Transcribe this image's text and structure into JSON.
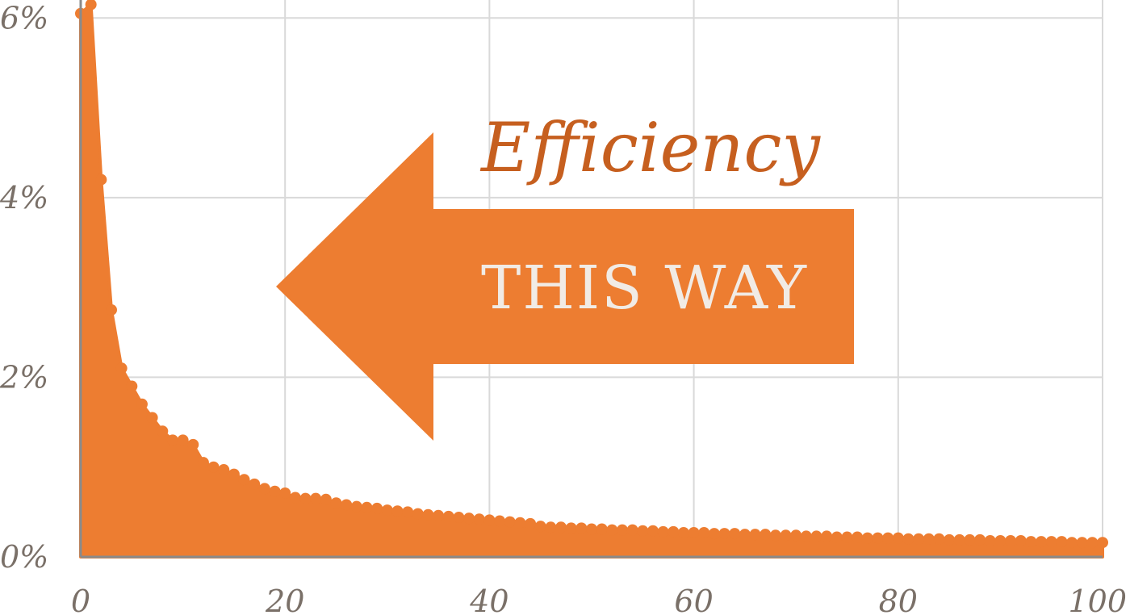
{
  "chart_data": {
    "type": "area",
    "xlim": [
      0,
      100
    ],
    "ylim": [
      0,
      6.2
    ],
    "x_ticks": [
      0,
      20,
      40,
      60,
      80,
      100
    ],
    "x_tick_labels": [
      "0",
      "20",
      "40",
      "60",
      "80",
      "100"
    ],
    "y_ticks": [
      0,
      2,
      4,
      6
    ],
    "y_tick_labels": [
      "0%",
      "2%",
      "4%",
      "6%"
    ],
    "grid": true,
    "color": "#ed7d31",
    "annotations": {
      "efficiency": "Efficiency",
      "this_way": "THIS WAY"
    },
    "x": [
      0,
      1,
      2,
      3,
      4,
      5,
      6,
      7,
      8,
      9,
      10,
      11,
      12,
      13,
      14,
      15,
      16,
      17,
      18,
      19,
      20,
      21,
      22,
      23,
      24,
      25,
      26,
      27,
      28,
      29,
      30,
      31,
      32,
      33,
      34,
      35,
      36,
      37,
      38,
      39,
      40,
      41,
      42,
      43,
      44,
      45,
      46,
      47,
      48,
      49,
      50,
      51,
      52,
      53,
      54,
      55,
      56,
      57,
      58,
      59,
      60,
      61,
      62,
      63,
      64,
      65,
      66,
      67,
      68,
      69,
      70,
      71,
      72,
      73,
      74,
      75,
      76,
      77,
      78,
      79,
      80,
      81,
      82,
      83,
      84,
      85,
      86,
      87,
      88,
      89,
      90,
      91,
      92,
      93,
      94,
      95,
      96,
      97,
      98,
      99,
      100
    ],
    "values": [
      6.05,
      6.15,
      4.2,
      2.75,
      2.1,
      1.9,
      1.7,
      1.55,
      1.4,
      1.3,
      1.3,
      1.25,
      1.05,
      1.0,
      0.97,
      0.92,
      0.86,
      0.81,
      0.76,
      0.73,
      0.71,
      0.66,
      0.65,
      0.65,
      0.64,
      0.6,
      0.58,
      0.56,
      0.55,
      0.54,
      0.52,
      0.51,
      0.5,
      0.48,
      0.47,
      0.46,
      0.45,
      0.44,
      0.43,
      0.42,
      0.41,
      0.4,
      0.39,
      0.38,
      0.37,
      0.34,
      0.33,
      0.33,
      0.32,
      0.32,
      0.31,
      0.31,
      0.3,
      0.3,
      0.3,
      0.29,
      0.29,
      0.28,
      0.28,
      0.27,
      0.27,
      0.27,
      0.26,
      0.26,
      0.26,
      0.25,
      0.25,
      0.25,
      0.24,
      0.24,
      0.24,
      0.23,
      0.23,
      0.23,
      0.22,
      0.22,
      0.22,
      0.21,
      0.21,
      0.21,
      0.21,
      0.2,
      0.2,
      0.2,
      0.2,
      0.19,
      0.19,
      0.19,
      0.19,
      0.18,
      0.18,
      0.18,
      0.18,
      0.17,
      0.17,
      0.17,
      0.17,
      0.16,
      0.16,
      0.16,
      0.16
    ]
  }
}
